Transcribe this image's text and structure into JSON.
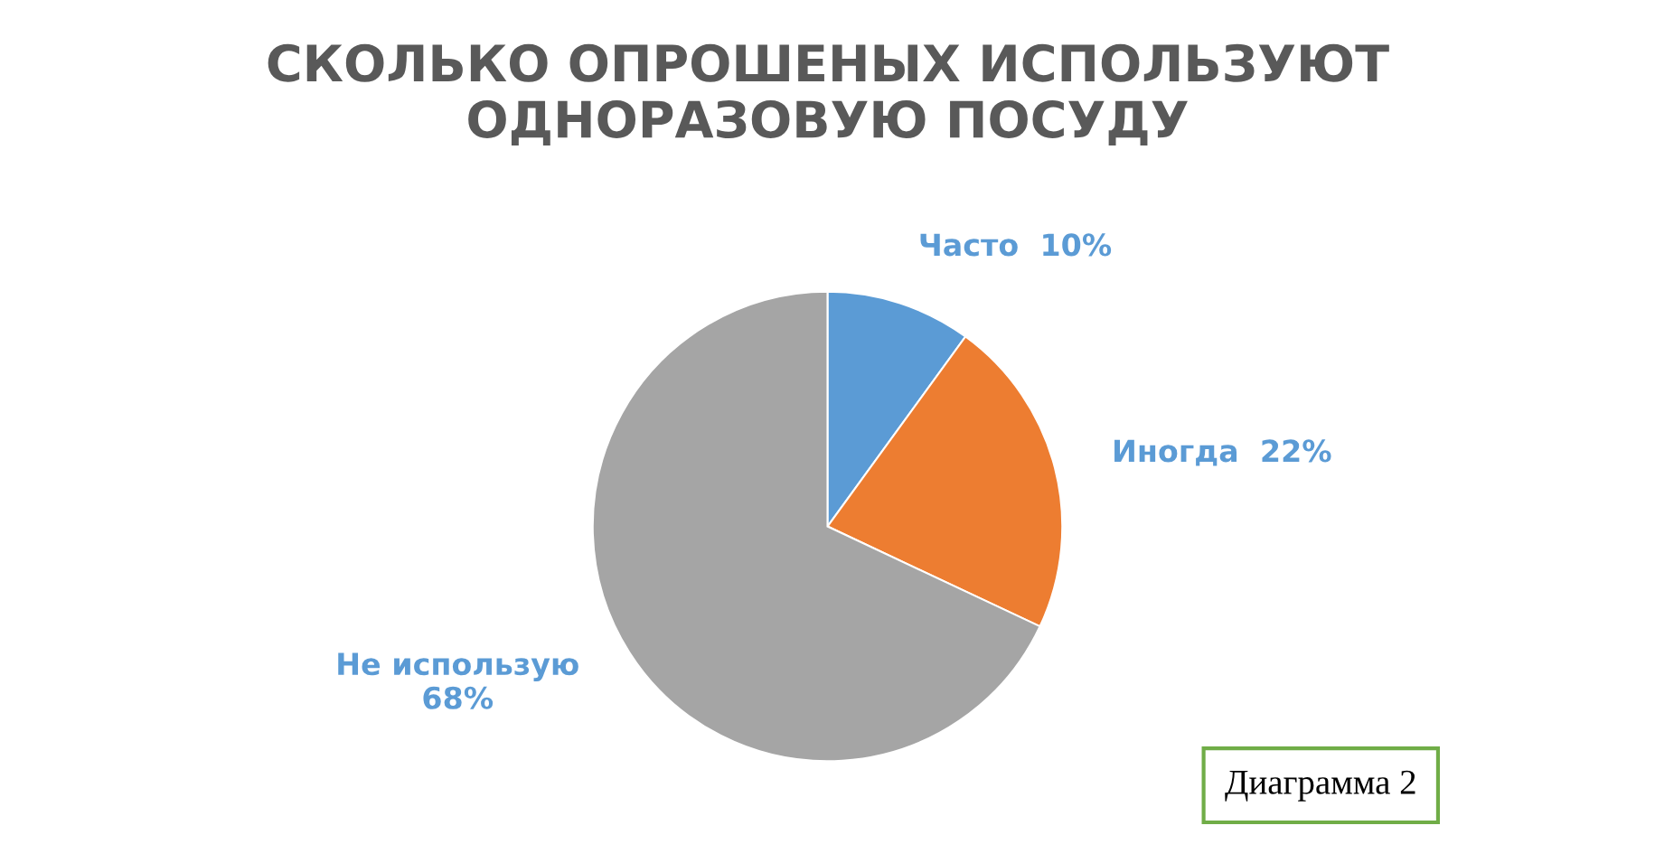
{
  "chart_data": {
    "type": "pie",
    "title": "СКОЛЬКО ОПРОШЕНЫХ ИСПОЛЬЗУЮТ\nОДНОРАЗОВУЮ ПОСУДУ",
    "categories": [
      "Часто",
      "Иногда",
      "Не использую"
    ],
    "values": [
      10,
      22,
      68
    ],
    "value_labels": [
      "10%",
      "22%",
      "68%"
    ],
    "colors": [
      "#5b9bd5",
      "#ed7d31",
      "#a5a5a5"
    ],
    "annotations": [
      "Диаграмма 2"
    ]
  }
}
